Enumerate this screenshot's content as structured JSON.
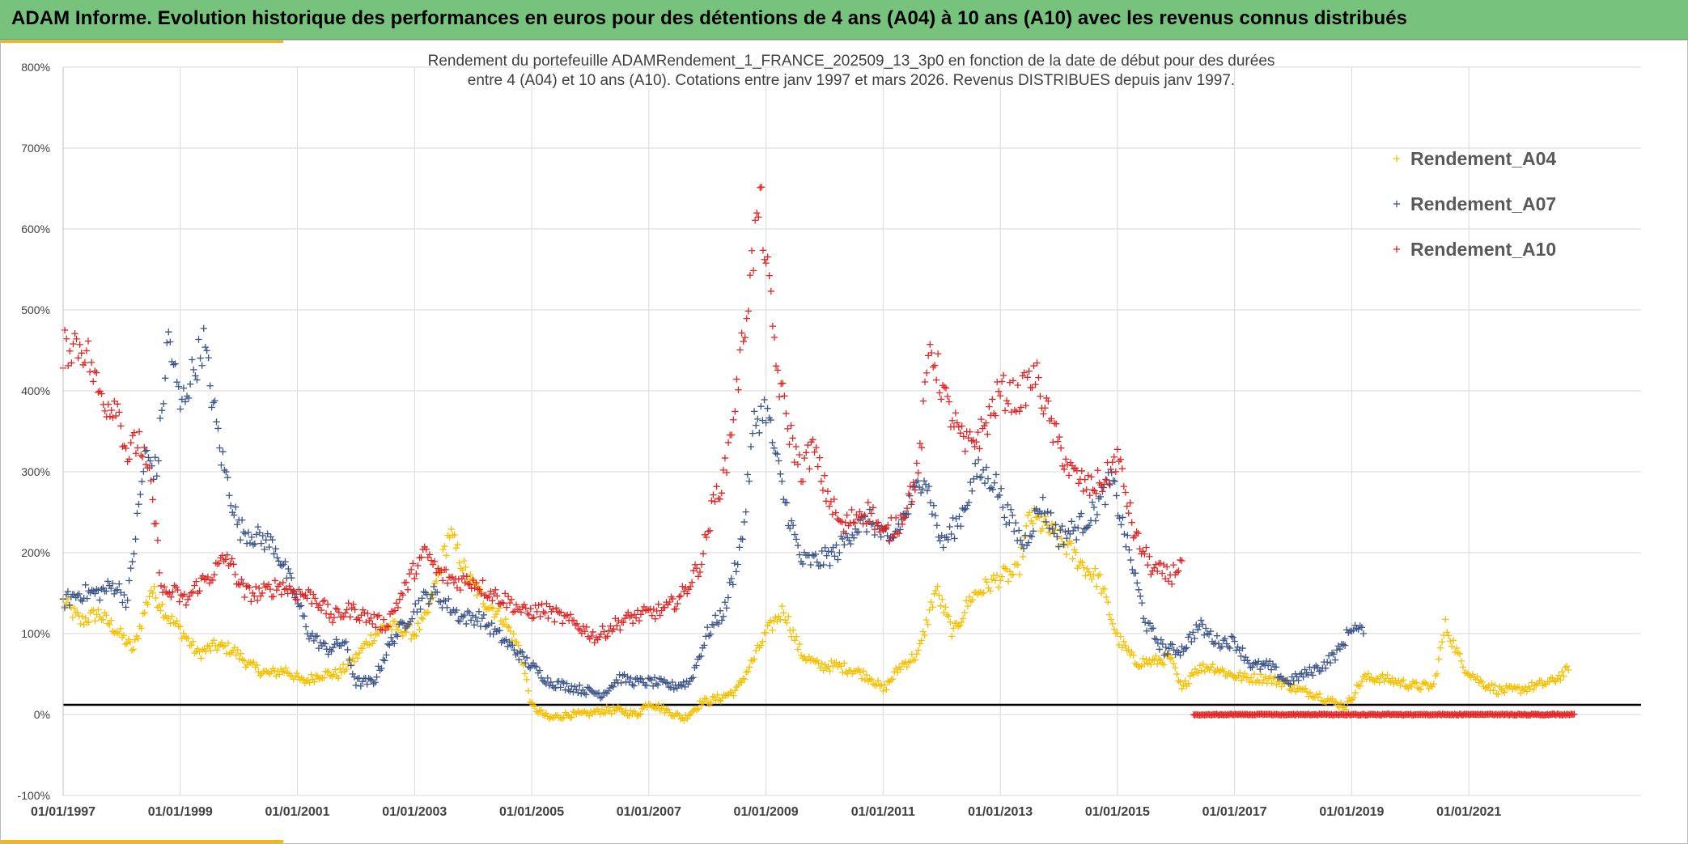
{
  "banner": {
    "title": "ADAM Informe. Evolution historique des performances en euros pour des détentions de 4 ans (A04) à 10 ans (A10) avec les revenus connus distribués"
  },
  "colors": {
    "banner_bg": "#77c37e",
    "accent": "#f5b70f",
    "series_A04": "#f5c000",
    "series_A07": "#3c5488",
    "series_A10": "#e02424",
    "reference_line": "#000000"
  },
  "chart_data": {
    "type": "scatter",
    "title_lines": [
      "Rendement du portefeuille ADAMRendement_1_FRANCE_202509_13_3p0  en fonction de la date de début pour des durées",
      "entre 4 (A04) et 10 ans (A10). Cotations entre janv 1997 et mars 2026. Revenus DISTRIBUES depuis janv 1997."
    ],
    "xlabel": "",
    "ylabel": "",
    "x_range": [
      1997.0,
      2023.0
    ],
    "ylim": [
      -100,
      800
    ],
    "y_ticks": [
      -100,
      0,
      100,
      200,
      300,
      400,
      500,
      600,
      700,
      800
    ],
    "y_tick_labels": [
      "-100%",
      "0%",
      "100%",
      "200%",
      "300%",
      "400%",
      "500%",
      "600%",
      "700%",
      "800%"
    ],
    "x_ticks": [
      1997,
      1999,
      2001,
      2003,
      2005,
      2007,
      2009,
      2011,
      2013,
      2015,
      2017,
      2019,
      2021
    ],
    "x_tick_labels": [
      "01/01/1997",
      "01/01/1999",
      "01/01/2001",
      "01/01/2003",
      "01/01/2005",
      "01/01/2007",
      "01/01/2009",
      "01/01/2011",
      "01/01/2013",
      "01/01/2015",
      "01/01/2017",
      "01/01/2019",
      "01/01/2021"
    ],
    "grid": true,
    "legend_position": "top-right",
    "reference_line_value": 12,
    "marker": "+",
    "series": [
      {
        "name": "Rendement_A04",
        "color_key": "series_A04",
        "x": [
          1997.0,
          1997.3,
          1997.6,
          1997.9,
          1998.2,
          1998.5,
          1998.8,
          1999.0,
          1999.3,
          1999.6,
          1999.9,
          2000.2,
          2000.5,
          2000.8,
          2001.1,
          2001.4,
          2001.7,
          2002.0,
          2002.2,
          2002.5,
          2002.8,
          2003.0,
          2003.2,
          2003.4,
          2003.6,
          2003.9,
          2004.2,
          2004.5,
          2004.8,
          2005.0,
          2005.3,
          2005.6,
          2005.9,
          2006.2,
          2006.5,
          2006.8,
          2007.0,
          2007.3,
          2007.6,
          2007.9,
          2008.2,
          2008.5,
          2008.8,
          2009.0,
          2009.3,
          2009.6,
          2009.9,
          2010.2,
          2010.5,
          2010.8,
          2011.0,
          2011.3,
          2011.6,
          2011.9,
          2012.2,
          2012.5,
          2012.8,
          2013.0,
          2013.3,
          2013.5,
          2013.8,
          2014.1,
          2014.4,
          2014.7,
          2015.0,
          2015.3,
          2015.6,
          2015.9,
          2016.1,
          2016.3,
          2016.6,
          2016.9,
          2017.2,
          2017.5,
          2017.8,
          2018.1,
          2018.4,
          2018.7,
          2018.9,
          2019.2,
          2019.5,
          2019.8,
          2020.1,
          2020.4,
          2020.6,
          2020.9,
          2021.2,
          2021.5,
          2021.8,
          2022.1,
          2022.4,
          2022.7
        ],
        "y": [
          140,
          115,
          125,
          105,
          80,
          155,
          120,
          105,
          75,
          85,
          80,
          60,
          50,
          55,
          40,
          50,
          50,
          70,
          90,
          110,
          105,
          100,
          120,
          170,
          225,
          170,
          140,
          120,
          80,
          10,
          -5,
          0,
          0,
          5,
          5,
          0,
          15,
          5,
          -5,
          15,
          20,
          30,
          70,
          100,
          130,
          75,
          60,
          60,
          55,
          45,
          30,
          60,
          75,
          155,
          100,
          145,
          160,
          170,
          175,
          245,
          230,
          210,
          185,
          165,
          95,
          65,
          65,
          70,
          30,
          55,
          60,
          50,
          45,
          45,
          40,
          30,
          25,
          15,
          10,
          45,
          45,
          40,
          35,
          35,
          110,
          60,
          40,
          30,
          30,
          35,
          40,
          55
        ]
      },
      {
        "name": "Rendement_A07",
        "color_key": "series_A07",
        "x": [
          1997.0,
          1997.3,
          1997.6,
          1997.9,
          1998.1,
          1998.4,
          1998.6,
          1998.8,
          1999.0,
          1999.2,
          1999.4,
          1999.7,
          2000.0,
          2000.3,
          2000.6,
          2000.9,
          2001.2,
          2001.5,
          2001.8,
          2002.0,
          2002.3,
          2002.6,
          2002.9,
          2003.1,
          2003.3,
          2003.5,
          2003.8,
          2004.1,
          2004.4,
          2004.7,
          2005.0,
          2005.3,
          2005.6,
          2005.9,
          2006.2,
          2006.5,
          2006.8,
          2007.1,
          2007.4,
          2007.7,
          2008.0,
          2008.3,
          2008.6,
          2008.8,
          2009.0,
          2009.3,
          2009.6,
          2009.9,
          2010.2,
          2010.5,
          2010.8,
          2011.1,
          2011.4,
          2011.7,
          2012.0,
          2012.3,
          2012.6,
          2012.9,
          2013.1,
          2013.4,
          2013.7,
          2014.0,
          2014.3,
          2014.6,
          2014.9,
          2015.2,
          2015.5,
          2015.8,
          2016.1,
          2016.4,
          2016.7,
          2017.0,
          2017.3,
          2017.6,
          2017.9,
          2018.2,
          2018.5,
          2018.8,
          2019.0,
          2019.2
        ],
        "y": [
          140,
          150,
          150,
          160,
          140,
          320,
          300,
          470,
          380,
          420,
          460,
          320,
          230,
          220,
          210,
          160,
          100,
          80,
          90,
          40,
          40,
          90,
          120,
          140,
          150,
          140,
          120,
          120,
          100,
          80,
          60,
          40,
          35,
          30,
          25,
          45,
          40,
          40,
          35,
          40,
          100,
          130,
          220,
          360,
          380,
          270,
          190,
          190,
          200,
          230,
          240,
          210,
          250,
          300,
          210,
          240,
          300,
          290,
          250,
          210,
          260,
          220,
          230,
          250,
          290,
          200,
          110,
          80,
          80,
          110,
          90,
          90,
          60,
          60,
          40,
          50,
          60,
          80,
          110,
          100
        ]
      },
      {
        "name": "Rendement_A10",
        "color_key": "series_A10",
        "x": [
          1997.0,
          1997.2,
          1997.4,
          1997.6,
          1997.8,
          1997.9,
          1998.1,
          1998.3,
          1998.5,
          1998.7,
          1998.9,
          1999.1,
          1999.3,
          1999.5,
          1999.8,
          2000.1,
          2000.4,
          2000.7,
          2001.0,
          2001.3,
          2001.6,
          2001.9,
          2002.2,
          2002.5,
          2002.8,
          2003.0,
          2003.2,
          2003.4,
          2003.7,
          2004.0,
          2004.3,
          2004.6,
          2004.9,
          2005.2,
          2005.5,
          2005.8,
          2006.1,
          2006.4,
          2006.7,
          2007.0,
          2007.3,
          2007.6,
          2007.9,
          2008.1,
          2008.3,
          2008.5,
          2008.7,
          2008.9,
          2009.0,
          2009.2,
          2009.4,
          2009.6,
          2009.8,
          2010.0,
          2010.3,
          2010.6,
          2010.8,
          2011.0,
          2011.3,
          2011.6,
          2011.8,
          2012.1,
          2012.4,
          2012.7,
          2013.0,
          2013.3,
          2013.6,
          2013.9,
          2014.2,
          2014.5,
          2014.8,
          2015.0,
          2015.3,
          2015.6,
          2015.9,
          2016.1
        ],
        "y": [
          450,
          460,
          450,
          400,
          380,
          390,
          320,
          340,
          280,
          150,
          150,
          140,
          160,
          170,
          195,
          150,
          150,
          160,
          150,
          145,
          120,
          130,
          120,
          110,
          150,
          180,
          200,
          175,
          165,
          165,
          150,
          140,
          125,
          130,
          120,
          110,
          95,
          110,
          120,
          125,
          130,
          150,
          190,
          260,
          300,
          400,
          520,
          640,
          560,
          420,
          350,
          300,
          330,
          280,
          230,
          250,
          250,
          220,
          240,
          300,
          460,
          380,
          330,
          350,
          400,
          390,
          420,
          350,
          300,
          280,
          290,
          320,
          220,
          180,
          170,
          190
        ]
      }
    ],
    "zero_band": {
      "name": "Rendement_A10",
      "color_key": "series_A10",
      "x_range": [
        2016.3,
        2022.8
      ],
      "value": 0
    }
  }
}
